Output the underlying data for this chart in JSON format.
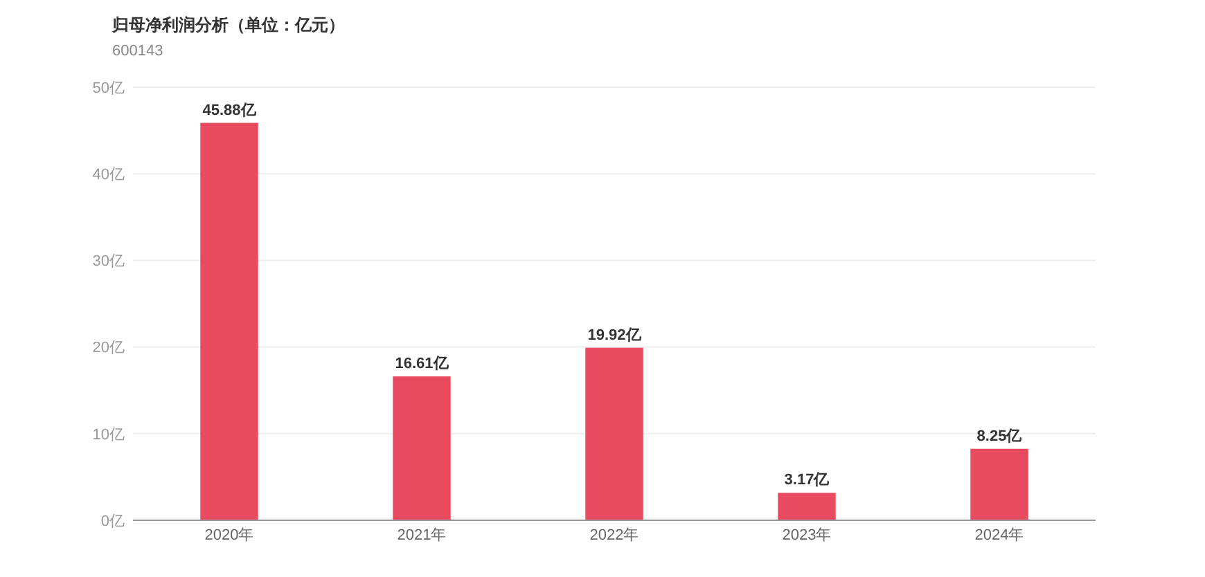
{
  "chart_data": {
    "type": "bar",
    "title": "归母净利润分析（单位：亿元）",
    "subtitle": "600143",
    "categories": [
      "2020年",
      "2021年",
      "2022年",
      "2023年",
      "2024年"
    ],
    "values": [
      45.88,
      16.61,
      19.92,
      3.17,
      8.25
    ],
    "value_labels": [
      "45.88亿",
      "16.61亿",
      "19.92亿",
      "3.17亿",
      "8.25亿"
    ],
    "color": "#e84a5f",
    "ylim": [
      0,
      50
    ],
    "yticks": [
      {
        "value": 0,
        "label": "0亿"
      },
      {
        "value": 10,
        "label": "10亿"
      },
      {
        "value": 20,
        "label": "20亿"
      },
      {
        "value": 30,
        "label": "30亿"
      },
      {
        "value": 40,
        "label": "40亿"
      },
      {
        "value": 50,
        "label": "50亿"
      }
    ],
    "grid": "y"
  }
}
